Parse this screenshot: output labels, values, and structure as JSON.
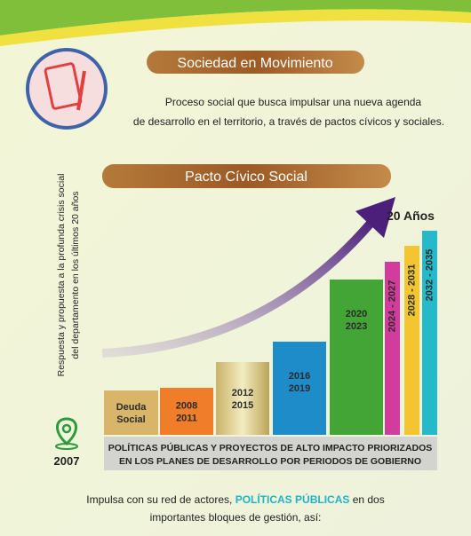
{
  "header": {
    "title": "Sociedad en Movimiento",
    "description": [
      "Proceso social que busca impulsar una nueva agenda",
      "de desarrollo en el territorio, a través de pactos cívicos y sociales."
    ]
  },
  "pact": {
    "title": "Pacto Cívico Social",
    "side_text": [
      "Respuesta y propuesta a la profunda crisis social",
      "del departamento en los últimos 20 años"
    ],
    "horizon": "20 Años",
    "start_year": "2007",
    "periods": [
      {
        "label": [
          "Deuda",
          "Social"
        ]
      },
      {
        "label": [
          "2008",
          "2011"
        ]
      },
      {
        "label": [
          "2012",
          "2015"
        ]
      },
      {
        "label": [
          "2016",
          "2019"
        ]
      },
      {
        "label": [
          "2020",
          "2023"
        ]
      },
      {
        "label": [
          "2024 - 2027"
        ]
      },
      {
        "label": [
          "2028 - 2031"
        ]
      },
      {
        "label": [
          "2032 - 2035"
        ]
      }
    ],
    "footer_box": [
      "POLÍTICAS PÚBLICAS Y PROYECTOS DE ALTO IMPACTO PRIORIZADOS",
      "EN LOS PLANES DE DESARROLLO POR PERIODOS DE GOBIERNO"
    ]
  },
  "closing": {
    "before": "Impulsa con su red de actores, ",
    "highlight": "POLÍTICAS PÚBLICAS",
    "after": " en dos",
    "line2": "importantes bloques de gestión, así:"
  }
}
